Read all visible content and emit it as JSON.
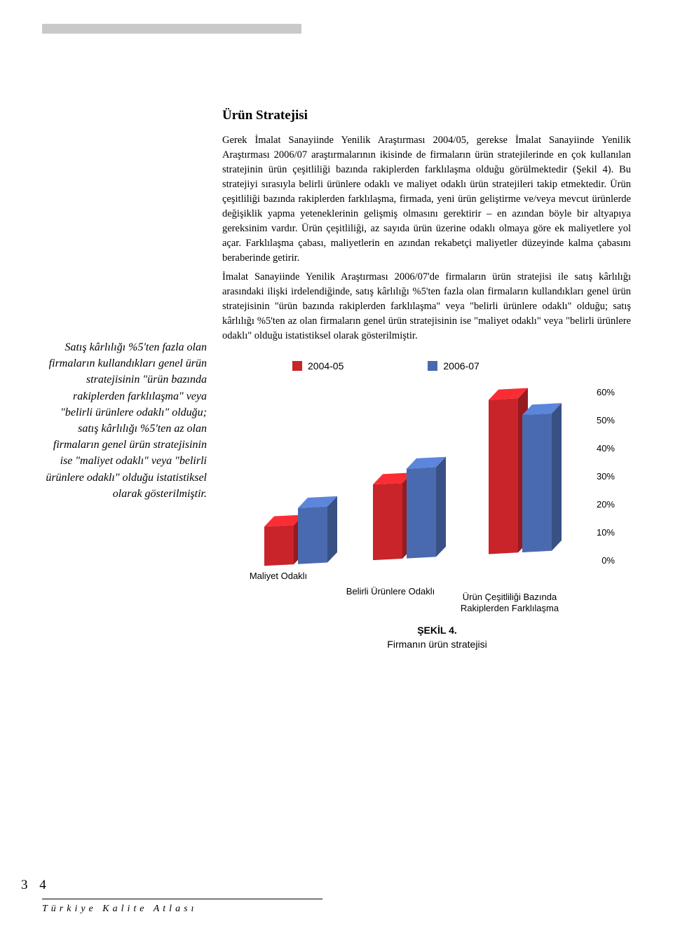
{
  "section_title": "Ürün Stratejisi",
  "para1": "Gerek İmalat Sanayiinde Yenilik Araştırması 2004/05, gerekse İmalat Sanayiinde Yenilik Araştırması 2006/07 araştırmalarının ikisinde de firmaların ürün stratejilerinde en çok kullanılan stratejinin ürün çeşitliliği bazında rakiplerden farklılaşma olduğu görülmektedir (Şekil 4). Bu stratejiyi sırasıyla belirli ürünlere odaklı ve maliyet odaklı ürün stratejileri takip etmektedir. Ürün çeşitliliği bazında rakiplerden farklılaşma, firmada, yeni ürün geliştirme ve/veya mevcut ürünlerde değişiklik yapma yeteneklerinin gelişmiş olmasını gerektirir – en azından böyle bir altyapıya gereksinim vardır. Ürün çeşitliliği, az sayıda ürün üzerine odaklı olmaya göre ek maliyetlere yol açar. Farklılaşma çabası, maliyetlerin en azından rekabetçi maliyetler düzeyinde kalma çabasını beraberinde getirir.",
  "para2": "İmalat Sanayiinde Yenilik Araştırması 2006/07'de firmaların ürün stratejisi ile satış kârlılığı arasındaki ilişki irdelendiğinde, satış kârlılığı %5'ten fazla olan firmaların kullandıkları genel ürün stratejisinin \"ürün bazında rakiplerden farklılaşma\" veya \"belirli ürünlere odaklı\" olduğu; satış kârlılığı %5'ten az olan firmaların genel ürün stratejisinin ise \"maliyet odaklı\" veya \"belirli ürünlere odaklı\" olduğu istatistiksel olarak gösterilmiştir.",
  "side_quote": "Satış kârlılığı %5'ten fazla olan firmaların kullandıkları genel ürün stratejisinin \"ürün bazında rakiplerden farklılaşma\" veya \"belirli ürünlere odaklı\" olduğu; satış kârlılığı %5'ten az olan firmaların genel ürün stratejisinin ise \"maliyet odaklı\" veya \"belirli ürünlere odaklı\" olduğu istatistiksel olarak gösterilmiştir.",
  "chart": {
    "type": "bar-3d",
    "legend": [
      {
        "label": "2004-05",
        "color": "#c8242a"
      },
      {
        "label": "2006-07",
        "color": "#4a6ab0"
      }
    ],
    "categories": [
      "Maliyet Odaklı",
      "Belirli Ürünlere Odaklı",
      "Ürün Çeşitliliği Bazında Rakiplerden Farklılaşma"
    ],
    "series": [
      {
        "name": "2004-05",
        "color": "#c8242a",
        "values": [
          14,
          27,
          55
        ]
      },
      {
        "name": "2006-07",
        "color": "#4a6ab0",
        "values": [
          20,
          32,
          49
        ]
      }
    ],
    "ylim": [
      0,
      60
    ],
    "ytick_step": 10,
    "yticks": [
      "0%",
      "10%",
      "20%",
      "30%",
      "40%",
      "50%",
      "60%"
    ],
    "background_color": "#ffffff",
    "label_fontsize": 13
  },
  "caption_head": "ŞEKİL 4.",
  "caption_body": "Firmanın ürün stratejisi",
  "page_number": "3 4",
  "footer_text": "Türkiye Kalite Atlası"
}
